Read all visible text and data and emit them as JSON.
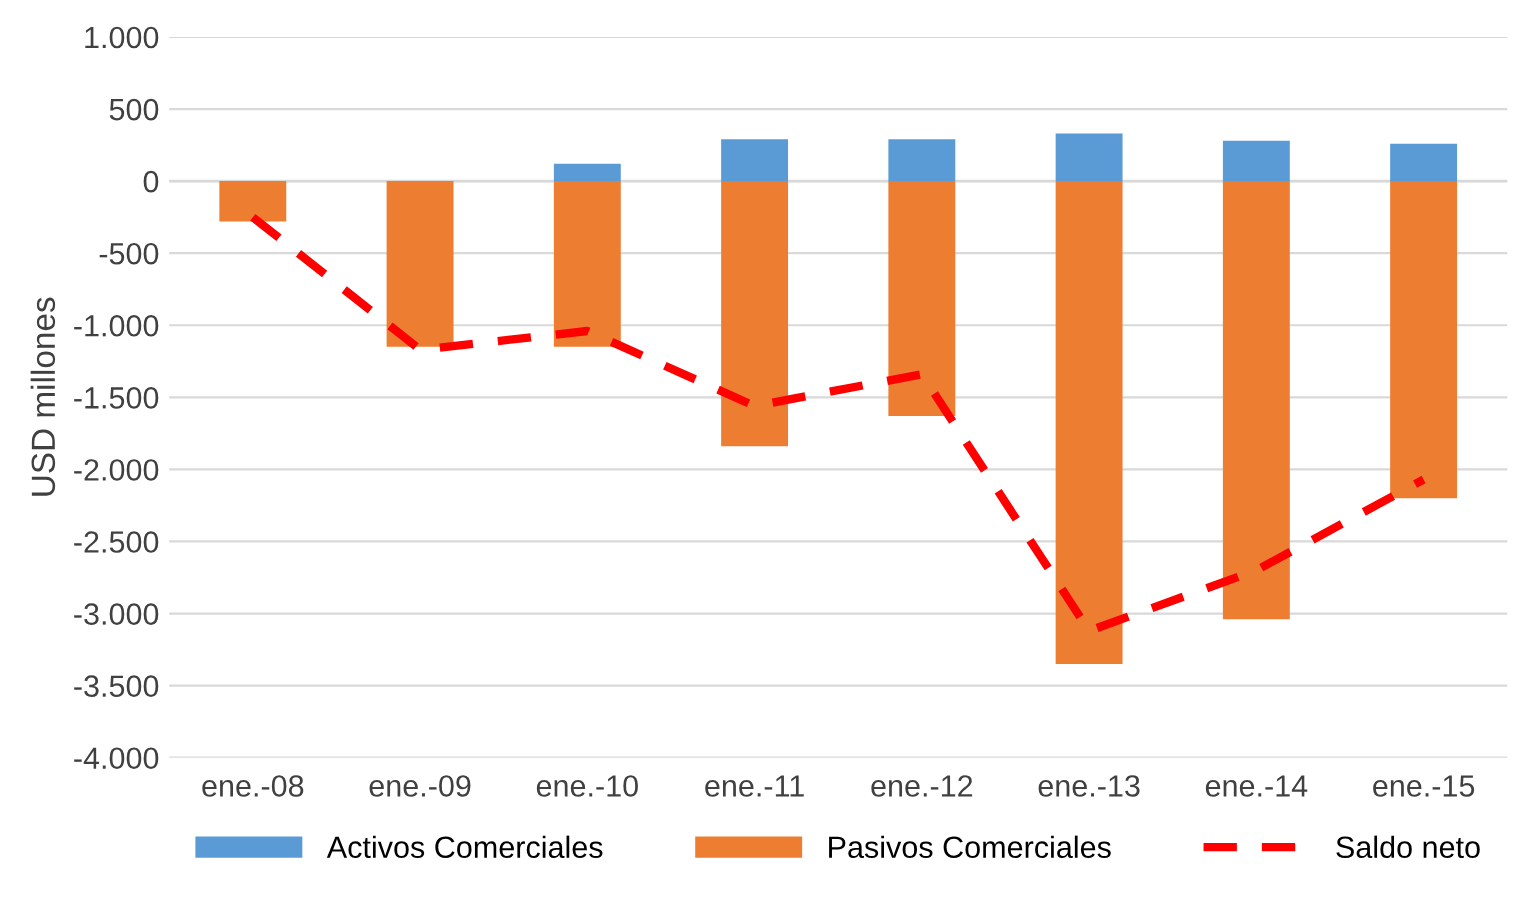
{
  "chart_data": {
    "type": "bar",
    "ylabel": "USD millones",
    "categories": [
      "ene.-08",
      "ene.-09",
      "ene.-10",
      "ene.-11",
      "ene.-12",
      "ene.-13",
      "ene.-14",
      "ene.-15"
    ],
    "series": [
      {
        "name": "Activos Comerciales",
        "color": "#5b9bd5",
        "values": [
          0,
          0,
          120,
          290,
          290,
          330,
          280,
          260
        ]
      },
      {
        "name": "Pasivos Comerciales",
        "color": "#ed7d31",
        "values": [
          -280,
          -1150,
          -1150,
          -1840,
          -1630,
          -3350,
          -3040,
          -2200
        ]
      },
      {
        "name": "Saldo neto",
        "type": "line",
        "color": "#ff0000",
        "line_style": "dashed",
        "values": [
          -250,
          -1170,
          -1040,
          -1560,
          -1340,
          -3120,
          -2700,
          -2070
        ]
      }
    ],
    "stacked": true,
    "ylim": [
      -4000,
      1000
    ],
    "yticks": [
      {
        "value": -4000,
        "label": "-4.000"
      },
      {
        "value": -3500,
        "label": "-3.500"
      },
      {
        "value": -3000,
        "label": "-3.000"
      },
      {
        "value": -2500,
        "label": "-2.500"
      },
      {
        "value": -2000,
        "label": "-2.000"
      },
      {
        "value": -1500,
        "label": "-1.500"
      },
      {
        "value": -1000,
        "label": "-1.000"
      },
      {
        "value": -500,
        "label": "-500"
      },
      {
        "value": 0,
        "label": "0"
      },
      {
        "value": 500,
        "label": "500"
      },
      {
        "value": 1000,
        "label": "1.000"
      }
    ],
    "grid": "y",
    "legend": "bottom"
  }
}
